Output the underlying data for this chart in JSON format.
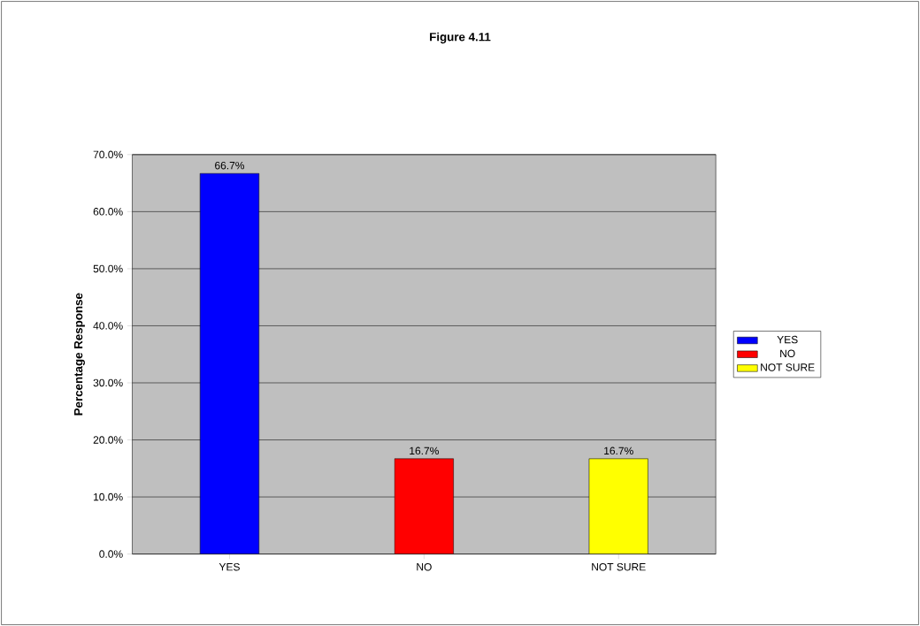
{
  "chart_data": {
    "type": "bar",
    "title": "Figure 4.11",
    "ylabel": "Percentage Response",
    "categories": [
      "YES",
      "NO",
      "NOT SURE"
    ],
    "series": [
      {
        "name": "YES",
        "color": "#0000ff",
        "values": [
          66.7,
          null,
          null
        ],
        "value_labels": [
          "66.7%",
          null,
          null
        ]
      },
      {
        "name": "NO",
        "color": "#ff0000",
        "values": [
          null,
          16.7,
          null
        ],
        "value_labels": [
          null,
          "16.7%",
          null
        ]
      },
      {
        "name": "NOT SURE",
        "color": "#ffff00",
        "values": [
          null,
          null,
          16.7
        ],
        "value_labels": [
          null,
          null,
          "16.7%"
        ]
      }
    ],
    "ylim": [
      0,
      70
    ],
    "yticks": [
      {
        "value": 0,
        "label": "0.0%"
      },
      {
        "value": 10,
        "label": "10.0%"
      },
      {
        "value": 20,
        "label": "20.0%"
      },
      {
        "value": 30,
        "label": "30.0%"
      },
      {
        "value": 40,
        "label": "40.0%"
      },
      {
        "value": 50,
        "label": "50.0%"
      },
      {
        "value": 60,
        "label": "60.0%"
      },
      {
        "value": 70,
        "label": "70.0%"
      }
    ],
    "grid": "y",
    "legend": "right"
  }
}
